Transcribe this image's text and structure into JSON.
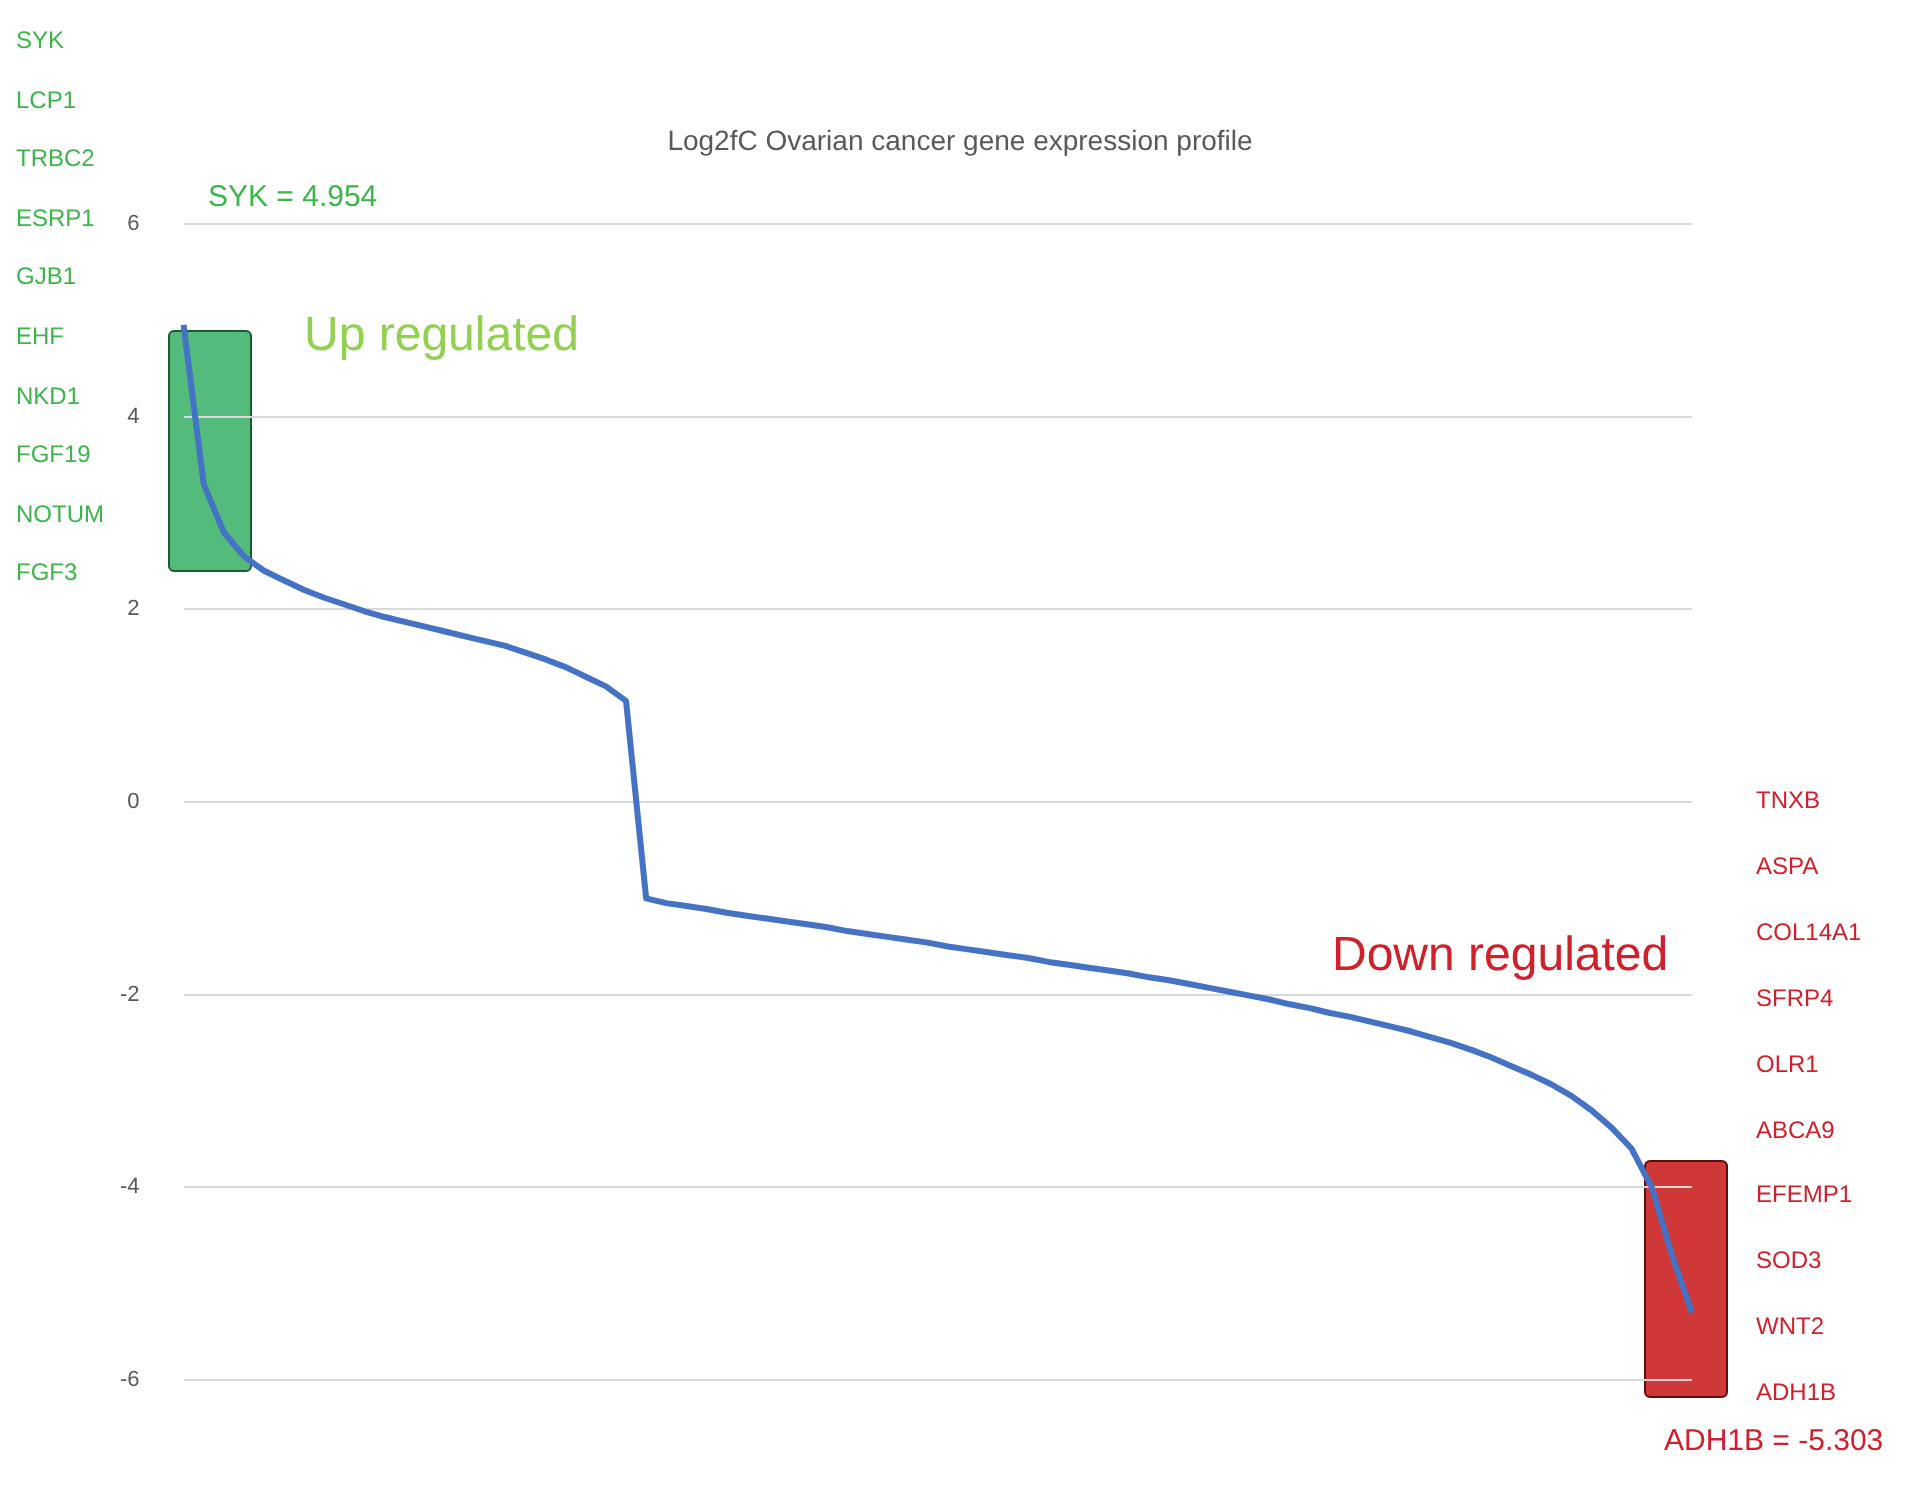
{
  "chart_data": {
    "type": "line",
    "title": "Log2fC Ovarian cancer gene expression profile",
    "categories": [
      null,
      null,
      null,
      null,
      null,
      null,
      null,
      null,
      null,
      null,
      null,
      null,
      null,
      null,
      null,
      null,
      null,
      null,
      null,
      null,
      null,
      null,
      null,
      null,
      null,
      null,
      null,
      null,
      null,
      null,
      null,
      null,
      null,
      null,
      null,
      null,
      null,
      null,
      null,
      null,
      null,
      null,
      null,
      null,
      null,
      null,
      null,
      null,
      null,
      null,
      null,
      null,
      null,
      null,
      null,
      null,
      null,
      null,
      null,
      null,
      null,
      null,
      null,
      null,
      null,
      null,
      null,
      null,
      null,
      null,
      null,
      null,
      null,
      null,
      null,
      null
    ],
    "series": [
      {
        "color": "#4472c4",
        "values": [
          4.954,
          3.3,
          2.8,
          2.55,
          2.4,
          2.3,
          2.2,
          2.12,
          2.05,
          1.98,
          1.92,
          1.87,
          1.82,
          1.77,
          1.72,
          1.67,
          1.62,
          1.55,
          1.48,
          1.4,
          1.3,
          1.2,
          1.05,
          -1.0,
          -1.05,
          -1.08,
          -1.11,
          -1.15,
          -1.18,
          -1.21,
          -1.24,
          -1.27,
          -1.3,
          -1.34,
          -1.37,
          -1.4,
          -1.43,
          -1.46,
          -1.5,
          -1.53,
          -1.56,
          -1.59,
          -1.62,
          -1.66,
          -1.69,
          -1.72,
          -1.75,
          -1.78,
          -1.82,
          -1.85,
          -1.89,
          -1.93,
          -1.97,
          -2.01,
          -2.05,
          -2.1,
          -2.14,
          -2.19,
          -2.23,
          -2.28,
          -2.33,
          -2.38,
          -2.44,
          -2.5,
          -2.57,
          -2.65,
          -2.74,
          -2.83,
          -2.93,
          -3.05,
          -3.2,
          -3.38,
          -3.6,
          -4.0,
          -4.7,
          -5.303
        ]
      }
    ],
    "ylim": [
      -6,
      6
    ],
    "yticks": [
      -6,
      -4,
      -2,
      0,
      2,
      4,
      6
    ],
    "grid": "y",
    "legend": false,
    "tick_labels": "y",
    "marker": "none",
    "line_style": "solid",
    "annotations": [
      "SYK = 4.954",
      "ADH1B = -5.303",
      "Up regulated",
      "Down regulated",
      "SYK\nLCP1\nTRBC2\nESRP1\nGJB1\nEHF\nNKD1\nFGF19\nNOTUM\nFGF3",
      "TNXB\nASPA\nCOL14A1\nSFRP4\nOLR1\nABCA9\nEFEMP1\nSOD3\nWNT2\nADH1B"
    ]
  }
}
